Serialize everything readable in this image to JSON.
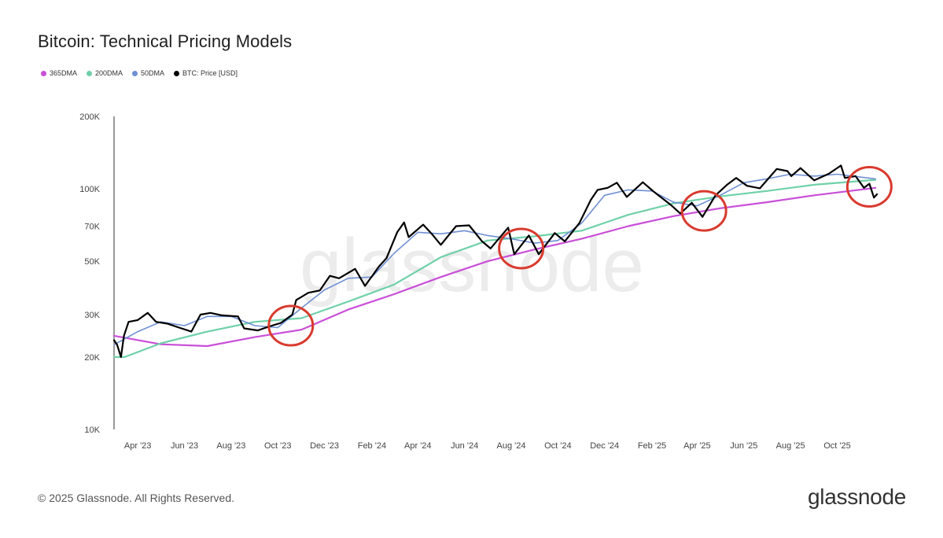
{
  "title": "Bitcoin: Technical Pricing Models",
  "footer": {
    "copyright": "© 2025 Glassnode. All Rights Reserved.",
    "brand": "glassnode"
  },
  "watermark": "glassnode",
  "colors": {
    "dma365": "#c94fd8",
    "dma200": "#6fd1a8",
    "dma50": "#6f8fd3",
    "price": "#000000",
    "highlight": "#d93a2e",
    "axis": "#333333"
  },
  "legend": [
    {
      "label": "365DMA",
      "color": "#c94fd8"
    },
    {
      "label": "200DMA",
      "color": "#6fd1a8"
    },
    {
      "label": "50DMA",
      "color": "#6f8fd3"
    },
    {
      "label": "BTC: Price [USD]",
      "color": "#000000"
    }
  ],
  "chart_data": {
    "type": "line",
    "title": "Bitcoin: Technical Pricing Models",
    "y_scale": "log",
    "ylim": [
      10000,
      200000
    ],
    "xlim": [
      "2023-03-01",
      "2025-11-25"
    ],
    "y_ticks": [
      {
        "value": 10000,
        "label": "10K"
      },
      {
        "value": 20000,
        "label": "20K"
      },
      {
        "value": 30000,
        "label": "30K"
      },
      {
        "value": 50000,
        "label": "50K"
      },
      {
        "value": 70000,
        "label": "70K"
      },
      {
        "value": 100000,
        "label": "100K"
      },
      {
        "value": 200000,
        "label": "200K"
      }
    ],
    "x_ticks": [
      {
        "date": "2023-04-01",
        "label": "Apr '23"
      },
      {
        "date": "2023-06-01",
        "label": "Jun '23"
      },
      {
        "date": "2023-08-01",
        "label": "Aug '23"
      },
      {
        "date": "2023-10-01",
        "label": "Oct '23"
      },
      {
        "date": "2023-12-01",
        "label": "Dec '23"
      },
      {
        "date": "2024-02-01",
        "label": "Feb '24"
      },
      {
        "date": "2024-04-01",
        "label": "Apr '24"
      },
      {
        "date": "2024-06-01",
        "label": "Jun '24"
      },
      {
        "date": "2024-08-01",
        "label": "Aug '24"
      },
      {
        "date": "2024-10-01",
        "label": "Oct '24"
      },
      {
        "date": "2024-12-01",
        "label": "Dec '24"
      },
      {
        "date": "2025-02-01",
        "label": "Feb '25"
      },
      {
        "date": "2025-04-01",
        "label": "Apr '25"
      },
      {
        "date": "2025-06-01",
        "label": "Jun '25"
      },
      {
        "date": "2025-08-01",
        "label": "Aug '25"
      },
      {
        "date": "2025-10-01",
        "label": "Oct '25"
      }
    ],
    "series": [
      {
        "name": "365DMA",
        "color": "#c94fd8",
        "points": [
          [
            "2023-03-01",
            24500
          ],
          [
            "2023-05-01",
            22600
          ],
          [
            "2023-07-01",
            22200
          ],
          [
            "2023-09-01",
            24200
          ],
          [
            "2023-11-01",
            26000
          ],
          [
            "2024-01-01",
            31500
          ],
          [
            "2024-03-01",
            36500
          ],
          [
            "2024-05-01",
            43000
          ],
          [
            "2024-07-01",
            50000
          ],
          [
            "2024-09-01",
            56000
          ],
          [
            "2024-11-01",
            62000
          ],
          [
            "2025-01-01",
            70000
          ],
          [
            "2025-03-01",
            77000
          ],
          [
            "2025-05-01",
            83000
          ],
          [
            "2025-07-01",
            88000
          ],
          [
            "2025-09-01",
            94000
          ],
          [
            "2025-11-20",
            101000
          ]
        ]
      },
      {
        "name": "200DMA",
        "color": "#6fd1a8",
        "points": [
          [
            "2023-03-01",
            20000
          ],
          [
            "2023-03-15",
            20000
          ],
          [
            "2023-05-01",
            22800
          ],
          [
            "2023-07-01",
            25500
          ],
          [
            "2023-09-01",
            28000
          ],
          [
            "2023-11-01",
            29000
          ],
          [
            "2024-01-01",
            34000
          ],
          [
            "2024-03-01",
            40000
          ],
          [
            "2024-05-01",
            52000
          ],
          [
            "2024-07-01",
            61000
          ],
          [
            "2024-09-01",
            63500
          ],
          [
            "2024-11-01",
            67000
          ],
          [
            "2025-01-01",
            78000
          ],
          [
            "2025-03-01",
            87000
          ],
          [
            "2025-05-01",
            93000
          ],
          [
            "2025-07-01",
            98000
          ],
          [
            "2025-09-01",
            104000
          ],
          [
            "2025-11-20",
            109000
          ]
        ]
      },
      {
        "name": "50DMA",
        "color": "#6f8fd3",
        "points": [
          [
            "2023-03-01",
            22500
          ],
          [
            "2023-04-01",
            25500
          ],
          [
            "2023-05-01",
            28000
          ],
          [
            "2023-06-01",
            27000
          ],
          [
            "2023-07-01",
            29500
          ],
          [
            "2023-08-01",
            29500
          ],
          [
            "2023-09-01",
            27000
          ],
          [
            "2023-10-01",
            26500
          ],
          [
            "2023-11-01",
            32000
          ],
          [
            "2023-12-01",
            38000
          ],
          [
            "2024-01-01",
            42500
          ],
          [
            "2024-02-01",
            43000
          ],
          [
            "2024-03-01",
            54000
          ],
          [
            "2024-04-01",
            66000
          ],
          [
            "2024-05-01",
            65000
          ],
          [
            "2024-06-01",
            67000
          ],
          [
            "2024-07-01",
            64000
          ],
          [
            "2024-08-01",
            62000
          ],
          [
            "2024-09-01",
            59500
          ],
          [
            "2024-10-01",
            61000
          ],
          [
            "2024-11-01",
            72000
          ],
          [
            "2024-12-01",
            94000
          ],
          [
            "2025-01-01",
            99000
          ],
          [
            "2025-02-01",
            98000
          ],
          [
            "2025-03-01",
            88000
          ],
          [
            "2025-04-01",
            85000
          ],
          [
            "2025-05-01",
            94000
          ],
          [
            "2025-06-01",
            106000
          ],
          [
            "2025-07-01",
            110000
          ],
          [
            "2025-08-01",
            115000
          ],
          [
            "2025-09-01",
            113000
          ],
          [
            "2025-10-01",
            115000
          ],
          [
            "2025-11-20",
            110000
          ]
        ]
      },
      {
        "name": "BTC: Price [USD]",
        "color": "#000000",
        "points": [
          [
            "2023-03-01",
            23500
          ],
          [
            "2023-03-05",
            22500
          ],
          [
            "2023-03-10",
            20000
          ],
          [
            "2023-03-14",
            24500
          ],
          [
            "2023-03-20",
            28000
          ],
          [
            "2023-04-01",
            28500
          ],
          [
            "2023-04-14",
            30500
          ],
          [
            "2023-04-25",
            28000
          ],
          [
            "2023-05-10",
            27500
          ],
          [
            "2023-05-25",
            26500
          ],
          [
            "2023-06-10",
            25500
          ],
          [
            "2023-06-22",
            30000
          ],
          [
            "2023-07-05",
            30500
          ],
          [
            "2023-07-20",
            29800
          ],
          [
            "2023-08-10",
            29500
          ],
          [
            "2023-08-18",
            26300
          ],
          [
            "2023-09-05",
            25800
          ],
          [
            "2023-09-20",
            26800
          ],
          [
            "2023-10-05",
            27700
          ],
          [
            "2023-10-20",
            30000
          ],
          [
            "2023-10-25",
            34500
          ],
          [
            "2023-11-10",
            37000
          ],
          [
            "2023-11-25",
            37800
          ],
          [
            "2023-12-08",
            43500
          ],
          [
            "2023-12-20",
            42500
          ],
          [
            "2024-01-10",
            46500
          ],
          [
            "2024-01-23",
            39500
          ],
          [
            "2024-02-10",
            47500
          ],
          [
            "2024-02-20",
            51500
          ],
          [
            "2024-03-05",
            66000
          ],
          [
            "2024-03-14",
            72500
          ],
          [
            "2024-03-20",
            63000
          ],
          [
            "2024-04-08",
            71000
          ],
          [
            "2024-04-20",
            64500
          ],
          [
            "2024-05-01",
            58500
          ],
          [
            "2024-05-21",
            70000
          ],
          [
            "2024-06-07",
            70500
          ],
          [
            "2024-06-24",
            60500
          ],
          [
            "2024-07-05",
            56500
          ],
          [
            "2024-07-28",
            69000
          ],
          [
            "2024-08-05",
            53500
          ],
          [
            "2024-08-24",
            64000
          ],
          [
            "2024-09-06",
            53500
          ],
          [
            "2024-09-27",
            65500
          ],
          [
            "2024-10-10",
            60500
          ],
          [
            "2024-10-29",
            72000
          ],
          [
            "2024-11-13",
            90000
          ],
          [
            "2024-11-22",
            99000
          ],
          [
            "2024-12-05",
            101000
          ],
          [
            "2024-12-17",
            106000
          ],
          [
            "2024-12-30",
            92500
          ],
          [
            "2025-01-20",
            106500
          ],
          [
            "2025-02-03",
            97500
          ],
          [
            "2025-02-25",
            86000
          ],
          [
            "2025-03-10",
            79000
          ],
          [
            "2025-03-25",
            87500
          ],
          [
            "2025-04-08",
            76500
          ],
          [
            "2025-04-25",
            94000
          ],
          [
            "2025-05-10",
            104000
          ],
          [
            "2025-05-22",
            111000
          ],
          [
            "2025-06-05",
            103000
          ],
          [
            "2025-06-22",
            100500
          ],
          [
            "2025-07-14",
            121000
          ],
          [
            "2025-07-28",
            118500
          ],
          [
            "2025-08-02",
            113000
          ],
          [
            "2025-08-14",
            122000
          ],
          [
            "2025-09-01",
            108500
          ],
          [
            "2025-09-20",
            115500
          ],
          [
            "2025-10-06",
            125000
          ],
          [
            "2025-10-11",
            111000
          ],
          [
            "2025-10-25",
            113000
          ],
          [
            "2025-11-05",
            101000
          ],
          [
            "2025-11-12",
            105000
          ],
          [
            "2025-11-18",
            92000
          ],
          [
            "2025-11-22",
            95000
          ]
        ]
      }
    ],
    "annotations": [
      {
        "type": "circle",
        "date": "2023-10-18",
        "value": 27000
      },
      {
        "type": "circle",
        "date": "2024-08-14",
        "value": 56500
      },
      {
        "type": "circle",
        "date": "2025-04-10",
        "value": 81000
      },
      {
        "type": "circle",
        "date": "2025-11-12",
        "value": 102000
      }
    ]
  }
}
